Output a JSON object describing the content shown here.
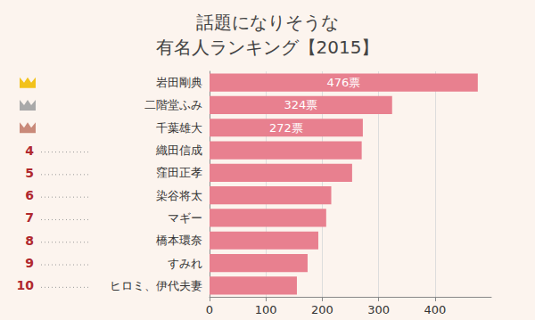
{
  "chart_data": {
    "type": "bar",
    "title": "話題になりそうな\n有名人ランキング【2015】",
    "orientation": "horizontal",
    "categories": [
      "岩田剛典",
      "二階堂ふみ",
      "千葉雄大",
      "織田信成",
      "窪田正孝",
      "染谷将太",
      "マギー",
      "橋本環奈",
      "すみれ",
      "ヒロミ、伊代夫妻"
    ],
    "ranks": [
      null,
      null,
      null,
      4,
      5,
      6,
      7,
      8,
      9,
      10
    ],
    "values": [
      476,
      324,
      272,
      270,
      253,
      216,
      207,
      193,
      174,
      155
    ],
    "value_labels": [
      "476票",
      "324票",
      "272票",
      null,
      null,
      null,
      null,
      null,
      null,
      null
    ],
    "data_labels": true,
    "color": "#e8808f",
    "xlim": [
      0,
      500
    ],
    "xticks": [
      0,
      100,
      200,
      300,
      400
    ],
    "grid": true
  }
}
